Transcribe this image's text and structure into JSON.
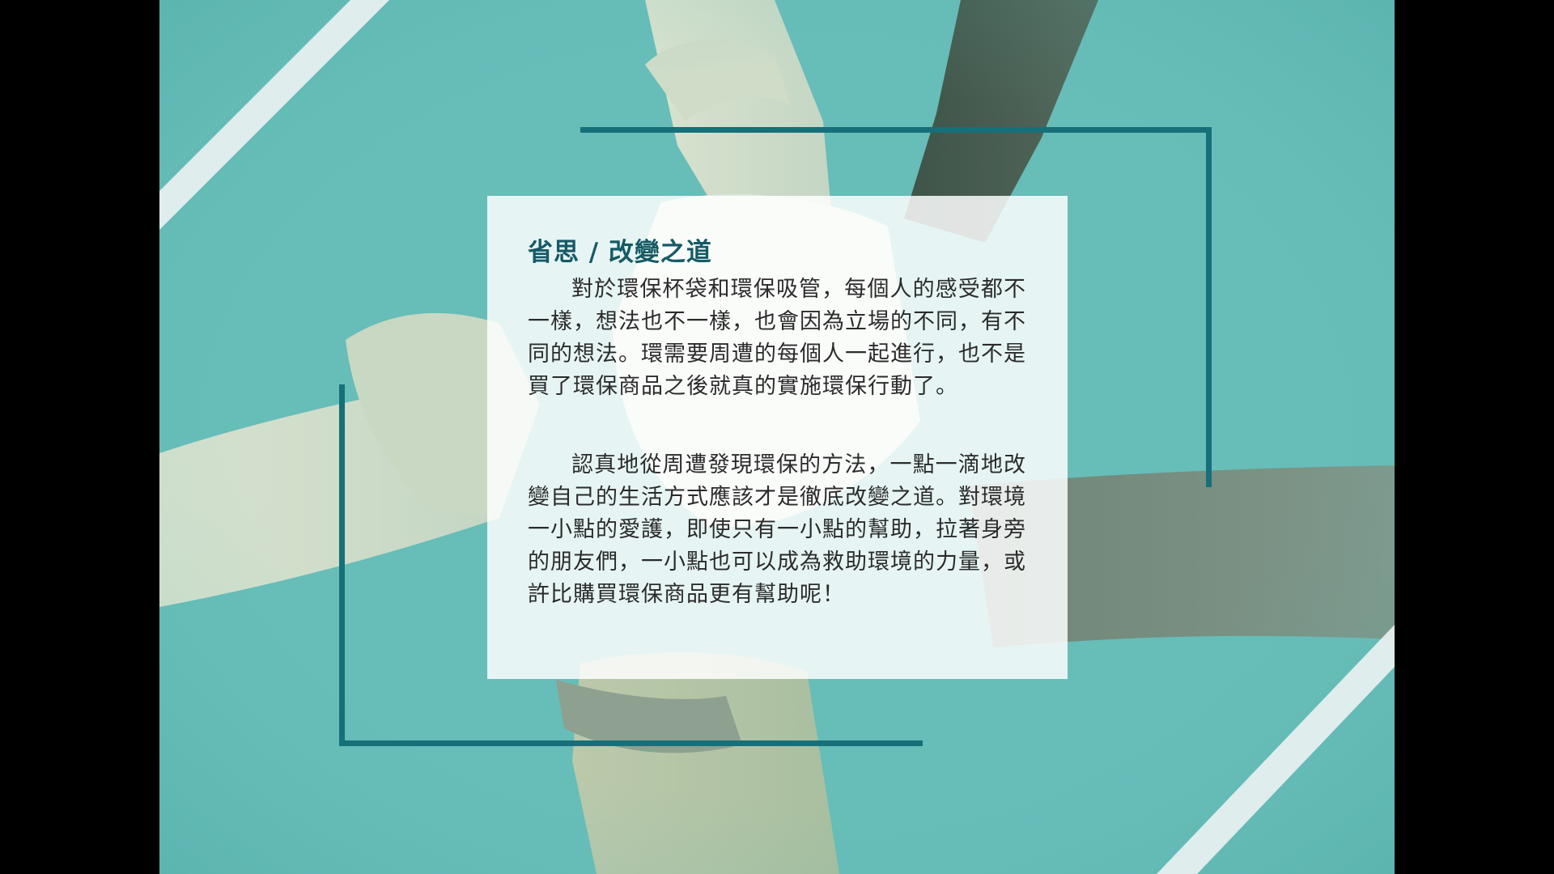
{
  "slide": {
    "title": "省思 / 改變之道",
    "paragraphs": [
      "對於環保杯袋和環保吸管，每個人的感受都不一樣，想法也不一樣，也會因為立場的不同，有不同的想法。環需要周遭的每個人一起進行，也不是買了環保商品之後就真的實施環保行動了。",
      "認真地從周遭發現環保的方法，一點一滴地改變自己的生活方式應該才是徹底改變之道。對環境一小點的愛護，即使只有一小點的幫助，拉著身旁的朋友們，一小點也可以成為救助環境的力量，或許比購買環保商品更有幫助呢！"
    ]
  },
  "background": {
    "image": "four-hands-holding-wrists-photo",
    "tint": "#67bdb8"
  },
  "colors": {
    "frame": "#16707a",
    "title": "#155a66",
    "text": "#2b2b2b",
    "panel": "#ffffff",
    "stripe": "#e9f1f1",
    "letterbox": "#000000"
  }
}
